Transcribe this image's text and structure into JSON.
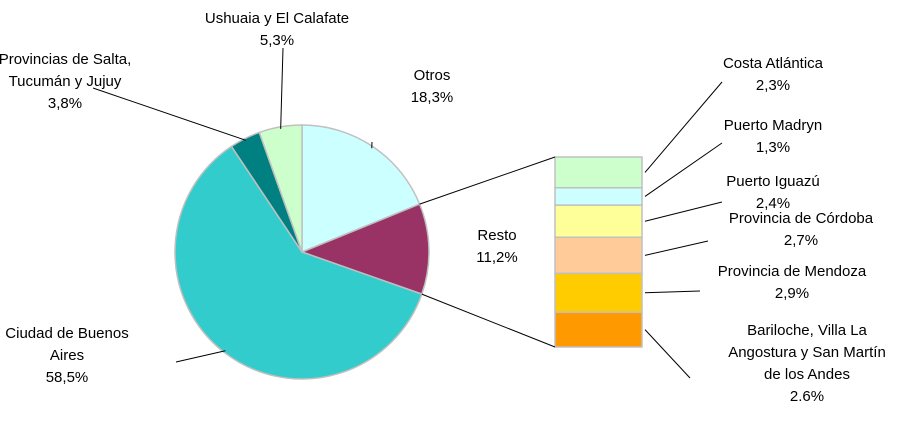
{
  "chart_data": {
    "type": "pie-of-bar",
    "categories": [
      "Otros",
      "Resto",
      "Ciudad de Buenos\nAires",
      "Provincias de Salta,\nTucumán y Jujuy",
      "Ushuaia y El Calafate"
    ],
    "values": [
      18.3,
      11.2,
      58.5,
      3.8,
      5.3
    ],
    "value_labels": [
      "18,3%",
      "11,2%",
      "58,5%",
      "3,8%",
      "5,3%"
    ],
    "colors": [
      "#ccffff",
      "#993366",
      "#33cccc",
      "#008080",
      "#ccffcc"
    ],
    "bar": {
      "categories": [
        "Costa Atlántica",
        "Puerto Madryn",
        "Puerto Iguazú",
        "Provincia de Córdoba",
        "Provincia de Mendoza",
        "Bariloche, Villa La\nAngostura y San Martín\nde los Andes"
      ],
      "values": [
        2.3,
        1.3,
        2.4,
        2.7,
        2.9,
        2.6
      ],
      "value_labels": [
        "2,3%",
        "1,3%",
        "2,4%",
        "2,7%",
        "2,9%",
        "2.6%"
      ],
      "colors": [
        "#ccffcc",
        "#ccffff",
        "#ffff99",
        "#ffcc99",
        "#ffcc00",
        "#ff9900"
      ]
    }
  }
}
